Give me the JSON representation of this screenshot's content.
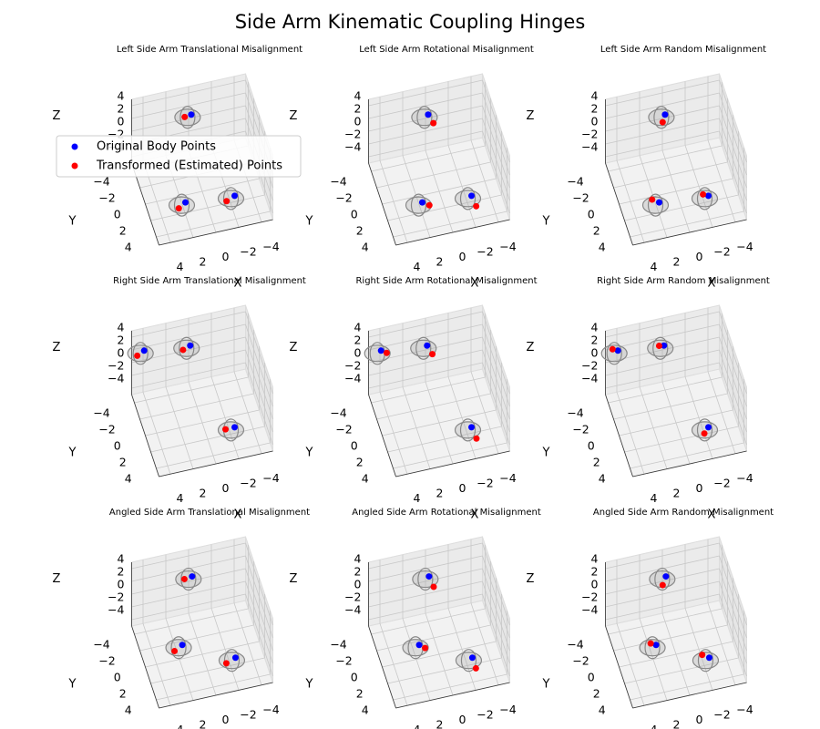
{
  "title": "Side Arm Kinematic Coupling Hinges",
  "legend": {
    "loc": "upper left",
    "entries": [
      {
        "name": "Original Body Points",
        "color": "#0000ff"
      },
      {
        "name": "Transformed (Estimated) Points",
        "color": "#ff0000"
      }
    ]
  },
  "axes": {
    "xlabel": "X",
    "ylabel": "Y",
    "zlabel": "Z",
    "xlim": [
      -5,
      5
    ],
    "ylim": [
      -5,
      5
    ],
    "zlim": [
      -5,
      5
    ],
    "grid": true,
    "xticks": [
      {
        "value": -4,
        "label": "−4"
      },
      {
        "value": -2,
        "label": "−2"
      },
      0,
      2,
      4
    ],
    "yticks": [
      {
        "value": -4,
        "label": "−4"
      },
      {
        "value": -2,
        "label": "−2"
      },
      0,
      2,
      4
    ],
    "zticks": [
      {
        "value": -4,
        "label": "−4"
      },
      {
        "value": -2,
        "label": "−2"
      },
      0,
      2,
      4
    ]
  },
  "chart_data": [
    {
      "type": "scatter3d",
      "title": "Left Side Arm Translational Misalignment",
      "series": [
        {
          "x": [
            0.2,
            2.2,
            -2.0
          ],
          "y": [
            -3.2,
            3.0,
            3.5
          ],
          "z": [
            3,
            -2,
            -2
          ]
        },
        {
          "x": [
            0.8,
            2.9,
            -1.2
          ],
          "y": [
            -3.1,
            3.5,
            3.9
          ],
          "z": [
            3,
            -2,
            -2
          ]
        }
      ]
    },
    {
      "type": "scatter3d",
      "title": "Left Side Arm Rotational Misalignment",
      "series": [
        {
          "x": [
            0.2,
            2.2,
            -2.0
          ],
          "y": [
            -3.2,
            3.0,
            3.5
          ],
          "z": [
            3,
            -2,
            -2
          ]
        },
        {
          "x": [
            0.0,
            1.7,
            -2.1
          ],
          "y": [
            -2.1,
            3.5,
            4.8
          ],
          "z": [
            3,
            -2,
            -2
          ]
        }
      ]
    },
    {
      "type": "scatter3d",
      "title": "Left Side Arm Random Misalignment",
      "series": [
        {
          "x": [
            0.2,
            2.2,
            -2.0
          ],
          "y": [
            -3.2,
            3.0,
            3.5
          ],
          "z": [
            3,
            -2,
            -2
          ]
        },
        {
          "x": [
            0.6,
            2.7,
            -1.6
          ],
          "y": [
            -2.4,
            2.5,
            3.2
          ],
          "z": [
            3,
            -2,
            -2
          ]
        }
      ]
    },
    {
      "type": "scatter3d",
      "title": "Right Side Arm Translational Misalignment",
      "series": [
        {
          "x": [
            4.0,
            0.1,
            -2.0
          ],
          "y": [
            -4.6,
            -4.0,
            3.5
          ],
          "z": [
            2,
            2,
            -2
          ]
        },
        {
          "x": [
            4.7,
            0.8,
            -1.2
          ],
          "y": [
            -4.2,
            -3.7,
            3.5
          ],
          "z": [
            2,
            2,
            -2
          ]
        }
      ]
    },
    {
      "type": "scatter3d",
      "title": "Right Side Arm Rotational Misalignment",
      "series": [
        {
          "x": [
            4.0,
            0.1,
            -2.0
          ],
          "y": [
            -4.6,
            -4.0,
            3.5
          ],
          "z": [
            2,
            2,
            -2
          ]
        },
        {
          "x": [
            3.6,
            -0.1,
            -2.1
          ],
          "y": [
            -4.2,
            -2.9,
            4.9
          ],
          "z": [
            2,
            2,
            -2
          ]
        }
      ]
    },
    {
      "type": "scatter3d",
      "title": "Right Side Arm Random Misalignment",
      "series": [
        {
          "x": [
            4.0,
            0.1,
            -2.0
          ],
          "y": [
            -4.6,
            -4.0,
            3.5
          ],
          "z": [
            2,
            2,
            -2
          ]
        },
        {
          "x": [
            4.4,
            0.5,
            -1.5
          ],
          "y": [
            -4.9,
            -4.1,
            4.1
          ],
          "z": [
            2,
            2,
            -2
          ]
        }
      ]
    },
    {
      "type": "scatter3d",
      "title": "Angled Side Arm Translational Misalignment",
      "series": [
        {
          "x": [
            0.1,
            1.9,
            -2.1
          ],
          "y": [
            -3.3,
            0.6,
            3.4
          ],
          "z": [
            3,
            -2,
            -2
          ]
        },
        {
          "x": [
            0.8,
            2.7,
            -1.2
          ],
          "y": [
            -3.2,
            1.1,
            3.8
          ],
          "z": [
            3,
            -2,
            -2
          ]
        }
      ]
    },
    {
      "type": "scatter3d",
      "title": "Angled Side Arm Rotational Misalignment",
      "series": [
        {
          "x": [
            0.1,
            1.9,
            -2.1
          ],
          "y": [
            -3.3,
            0.6,
            3.4
          ],
          "z": [
            3,
            -2,
            -2
          ]
        },
        {
          "x": [
            0.0,
            1.5,
            -2.1
          ],
          "y": [
            -2.0,
            1.1,
            4.7
          ],
          "z": [
            3,
            -2,
            -2
          ]
        }
      ]
    },
    {
      "type": "scatter3d",
      "title": "Angled Side Arm Random Misalignment",
      "series": [
        {
          "x": [
            0.1,
            1.9,
            -2.1
          ],
          "y": [
            -3.3,
            0.6,
            3.4
          ],
          "z": [
            3,
            -2,
            -2
          ]
        },
        {
          "x": [
            0.6,
            2.3,
            -1.6
          ],
          "y": [
            -2.4,
            0.3,
            2.9
          ],
          "z": [
            3,
            -2,
            -2
          ]
        }
      ]
    }
  ]
}
